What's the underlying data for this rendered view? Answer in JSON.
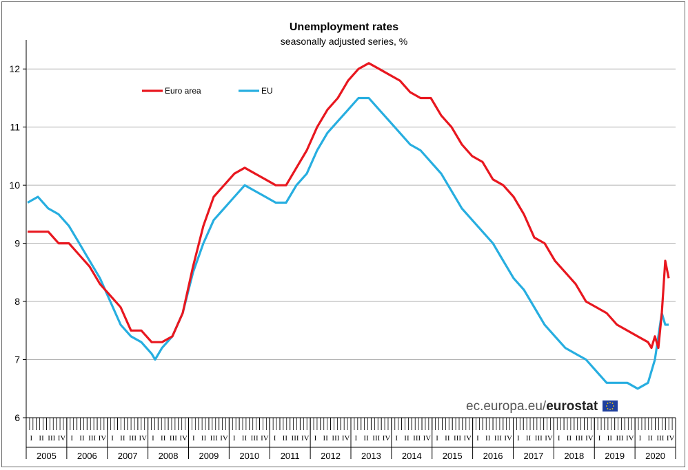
{
  "chart_data": {
    "type": "line",
    "title": "Unemployment rates",
    "subtitle": "seasonally adjusted series, %",
    "xlabel": "",
    "ylabel": "",
    "ylim": [
      6,
      12.5
    ],
    "yticks": [
      6,
      7,
      8,
      9,
      10,
      11,
      12
    ],
    "grid": true,
    "legend_position": "top-left",
    "x_start": "2005-01",
    "x_end": "2020-07",
    "quarter_labels": [
      "I",
      "II",
      "III",
      "IV"
    ],
    "years": [
      "2005",
      "2006",
      "2007",
      "2008",
      "2009",
      "2010",
      "2011",
      "2012",
      "2013",
      "2014",
      "2015",
      "2016",
      "2017",
      "2018",
      "2019",
      "2020"
    ],
    "series": [
      {
        "name": "Euro area",
        "color": "#e8171f",
        "points": [
          [
            "2005-01",
            9.2
          ],
          [
            "2005-07",
            9.2
          ],
          [
            "2005-10",
            9.0
          ],
          [
            "2006-01",
            9.0
          ],
          [
            "2006-04",
            8.8
          ],
          [
            "2006-07",
            8.6
          ],
          [
            "2006-10",
            8.3
          ],
          [
            "2007-01",
            8.1
          ],
          [
            "2007-04",
            7.9
          ],
          [
            "2007-07",
            7.5
          ],
          [
            "2007-10",
            7.5
          ],
          [
            "2008-01",
            7.3
          ],
          [
            "2008-04",
            7.3
          ],
          [
            "2008-07",
            7.4
          ],
          [
            "2008-10",
            7.8
          ],
          [
            "2009-01",
            8.6
          ],
          [
            "2009-04",
            9.3
          ],
          [
            "2009-07",
            9.8
          ],
          [
            "2009-10",
            10.0
          ],
          [
            "2010-01",
            10.2
          ],
          [
            "2010-04",
            10.3
          ],
          [
            "2010-07",
            10.2
          ],
          [
            "2010-10",
            10.1
          ],
          [
            "2011-01",
            10.0
          ],
          [
            "2011-04",
            10.0
          ],
          [
            "2011-07",
            10.3
          ],
          [
            "2011-10",
            10.6
          ],
          [
            "2012-01",
            11.0
          ],
          [
            "2012-04",
            11.3
          ],
          [
            "2012-07",
            11.5
          ],
          [
            "2012-10",
            11.8
          ],
          [
            "2013-01",
            12.0
          ],
          [
            "2013-04",
            12.1
          ],
          [
            "2013-07",
            12.0
          ],
          [
            "2013-10",
            11.9
          ],
          [
            "2014-01",
            11.8
          ],
          [
            "2014-04",
            11.6
          ],
          [
            "2014-07",
            11.5
          ],
          [
            "2014-10",
            11.5
          ],
          [
            "2015-01",
            11.2
          ],
          [
            "2015-04",
            11.0
          ],
          [
            "2015-07",
            10.7
          ],
          [
            "2015-10",
            10.5
          ],
          [
            "2016-01",
            10.4
          ],
          [
            "2016-04",
            10.1
          ],
          [
            "2016-07",
            10.0
          ],
          [
            "2016-10",
            9.8
          ],
          [
            "2017-01",
            9.5
          ],
          [
            "2017-04",
            9.1
          ],
          [
            "2017-07",
            9.0
          ],
          [
            "2017-10",
            8.7
          ],
          [
            "2018-01",
            8.5
          ],
          [
            "2018-04",
            8.3
          ],
          [
            "2018-07",
            8.0
          ],
          [
            "2018-10",
            7.9
          ],
          [
            "2019-01",
            7.8
          ],
          [
            "2019-04",
            7.6
          ],
          [
            "2019-07",
            7.5
          ],
          [
            "2019-10",
            7.4
          ],
          [
            "2020-01",
            7.3
          ],
          [
            "2020-02",
            7.2
          ],
          [
            "2020-03",
            7.4
          ],
          [
            "2020-04",
            7.2
          ],
          [
            "2020-05",
            7.8
          ],
          [
            "2020-06",
            8.7
          ],
          [
            "2020-07",
            8.4
          ]
        ]
      },
      {
        "name": "EU",
        "color": "#27aee0",
        "points": [
          [
            "2005-01",
            9.7
          ],
          [
            "2005-04",
            9.8
          ],
          [
            "2005-07",
            9.6
          ],
          [
            "2005-10",
            9.5
          ],
          [
            "2006-01",
            9.3
          ],
          [
            "2006-04",
            9.0
          ],
          [
            "2006-07",
            8.7
          ],
          [
            "2006-10",
            8.4
          ],
          [
            "2007-01",
            8.0
          ],
          [
            "2007-04",
            7.6
          ],
          [
            "2007-07",
            7.4
          ],
          [
            "2007-10",
            7.3
          ],
          [
            "2008-01",
            7.1
          ],
          [
            "2008-02",
            7.0
          ],
          [
            "2008-04",
            7.2
          ],
          [
            "2008-07",
            7.4
          ],
          [
            "2008-10",
            7.8
          ],
          [
            "2009-01",
            8.5
          ],
          [
            "2009-04",
            9.0
          ],
          [
            "2009-07",
            9.4
          ],
          [
            "2009-10",
            9.6
          ],
          [
            "2010-01",
            9.8
          ],
          [
            "2010-04",
            10.0
          ],
          [
            "2010-07",
            9.9
          ],
          [
            "2010-10",
            9.8
          ],
          [
            "2011-01",
            9.7
          ],
          [
            "2011-04",
            9.7
          ],
          [
            "2011-07",
            10.0
          ],
          [
            "2011-10",
            10.2
          ],
          [
            "2012-01",
            10.6
          ],
          [
            "2012-04",
            10.9
          ],
          [
            "2012-07",
            11.1
          ],
          [
            "2012-10",
            11.3
          ],
          [
            "2013-01",
            11.5
          ],
          [
            "2013-04",
            11.5
          ],
          [
            "2013-07",
            11.3
          ],
          [
            "2013-10",
            11.1
          ],
          [
            "2014-01",
            10.9
          ],
          [
            "2014-04",
            10.7
          ],
          [
            "2014-07",
            10.6
          ],
          [
            "2014-10",
            10.4
          ],
          [
            "2015-01",
            10.2
          ],
          [
            "2015-04",
            9.9
          ],
          [
            "2015-07",
            9.6
          ],
          [
            "2015-10",
            9.4
          ],
          [
            "2016-01",
            9.2
          ],
          [
            "2016-04",
            9.0
          ],
          [
            "2016-07",
            8.7
          ],
          [
            "2016-10",
            8.4
          ],
          [
            "2017-01",
            8.2
          ],
          [
            "2017-04",
            7.9
          ],
          [
            "2017-07",
            7.6
          ],
          [
            "2017-10",
            7.4
          ],
          [
            "2018-01",
            7.2
          ],
          [
            "2018-04",
            7.1
          ],
          [
            "2018-07",
            7.0
          ],
          [
            "2018-10",
            6.8
          ],
          [
            "2019-01",
            6.6
          ],
          [
            "2019-04",
            6.6
          ],
          [
            "2019-07",
            6.6
          ],
          [
            "2019-10",
            6.5
          ],
          [
            "2020-01",
            6.6
          ],
          [
            "2020-03",
            7.0
          ],
          [
            "2020-05",
            7.8
          ],
          [
            "2020-06",
            7.6
          ],
          [
            "2020-07",
            7.6
          ]
        ]
      }
    ]
  },
  "credit": {
    "prefix": "ec.europa.eu/",
    "brand": "eurostat"
  }
}
